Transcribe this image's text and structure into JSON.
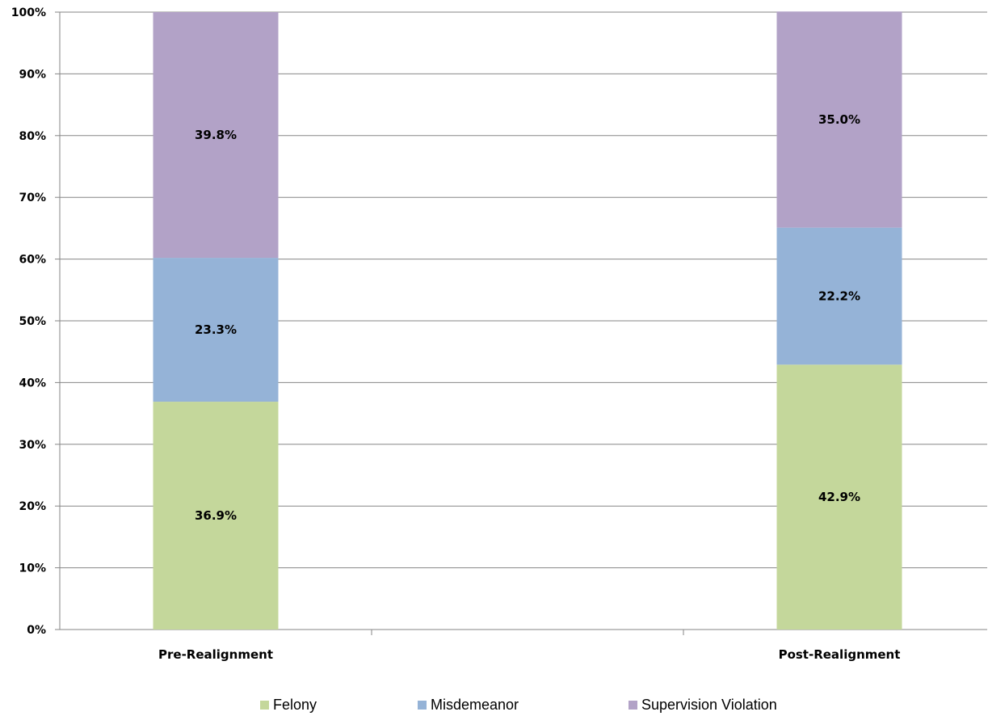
{
  "chart_data": {
    "type": "bar",
    "stacked": true,
    "categories": [
      "Pre-Realignment",
      "Post-Realignment"
    ],
    "series": [
      {
        "name": "Felony",
        "values": [
          36.9,
          42.9
        ],
        "labels": [
          "36.9%",
          "42.9%"
        ],
        "color": "#c4d79b"
      },
      {
        "name": "Misdemeanor",
        "values": [
          23.3,
          22.2
        ],
        "labels": [
          "23.3%",
          "22.2%"
        ],
        "color": "#95b3d7"
      },
      {
        "name": "Supervision Violation",
        "values": [
          39.8,
          35.0
        ],
        "labels": [
          "39.8%",
          "35.0%"
        ],
        "color": "#b2a2c7"
      }
    ],
    "yticks": [
      "0%",
      "10%",
      "20%",
      "30%",
      "40%",
      "50%",
      "60%",
      "70%",
      "80%",
      "90%",
      "100%"
    ],
    "ylim": [
      0,
      100
    ],
    "grid": true,
    "legend_position": "bottom",
    "title": "",
    "xlabel": "",
    "ylabel": ""
  }
}
